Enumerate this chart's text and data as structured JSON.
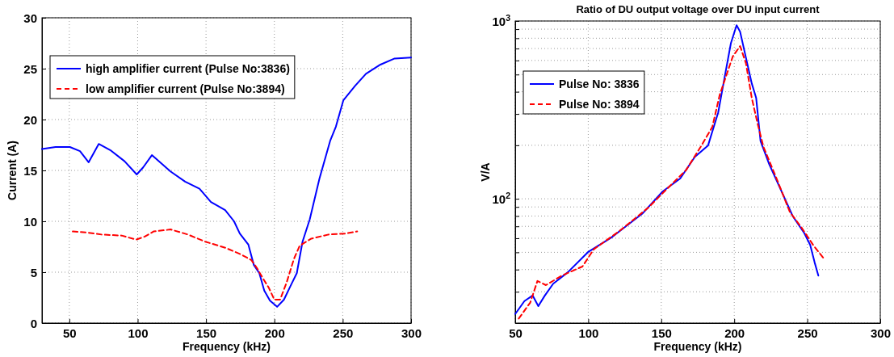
{
  "chart_data": [
    {
      "type": "line",
      "xlabel": "Frequency (kHz)",
      "ylabel": "Current (A)",
      "xlim": [
        30,
        300
      ],
      "xticks": [
        50,
        100,
        150,
        200,
        250,
        300
      ],
      "ylim": [
        0,
        30
      ],
      "yticks": [
        0,
        5,
        10,
        15,
        20,
        25,
        30
      ],
      "grid": true,
      "legend": "top left",
      "series": [
        {
          "name": "high amplifier current (Pulse No:3836)",
          "color": "#0000ff",
          "line_style": "solid",
          "x": [
            30,
            39.9,
            50.4,
            57.8,
            64.1,
            71.5,
            79.9,
            90.4,
            99.3,
            104,
            110.4,
            124,
            134.7,
            145.2,
            153.6,
            164,
            170.5,
            174.7,
            181,
            185,
            189,
            192.6,
            196.8,
            202,
            207,
            212,
            216.4,
            220.6,
            225.9,
            233,
            240.8,
            245,
            250.5,
            259,
            267,
            277.6,
            288,
            300
          ],
          "values": [
            17.1,
            17.3,
            17.3,
            16.9,
            15.8,
            17.6,
            17.0,
            15.9,
            14.6,
            15.3,
            16.5,
            14.9,
            13.9,
            13.2,
            11.9,
            11.1,
            10.0,
            8.8,
            7.7,
            5.7,
            4.9,
            3.2,
            2.2,
            1.6,
            2.3,
            3.7,
            4.9,
            8.0,
            10.2,
            14.2,
            17.9,
            19.3,
            21.9,
            23.3,
            24.5,
            25.4,
            26.0,
            26.1
          ]
        },
        {
          "name": "low amplifier current (Pulse No:3894)",
          "color": "#ff0000",
          "line_style": "dashed",
          "x": [
            52.5,
            63,
            73.6,
            88.3,
            98.9,
            105.2,
            111.6,
            124.1,
            136.8,
            149.4,
            164.2,
            174.7,
            183.1,
            187.3,
            191.6,
            195.8,
            200,
            204.2,
            209,
            214.3,
            218.5,
            227,
            239.6,
            252,
            260.6
          ],
          "values": [
            9.0,
            8.9,
            8.7,
            8.6,
            8.2,
            8.5,
            9.0,
            9.2,
            8.7,
            8.0,
            7.4,
            6.8,
            6.2,
            5.4,
            4.4,
            3.5,
            2.3,
            2.3,
            4.0,
            6.3,
            7.6,
            8.3,
            8.7,
            8.8,
            9.0
          ]
        }
      ]
    },
    {
      "type": "line",
      "title": "Ratio of DU output voltage over DU input current",
      "xlabel": "Frequency (kHz)",
      "ylabel": "V/A",
      "log": true,
      "xlim": [
        50,
        300
      ],
      "xticks": [
        50,
        100,
        150,
        200,
        250,
        300
      ],
      "ylim": [
        20,
        1000
      ],
      "yticks": [
        {
          "value": 20,
          "label": null
        },
        {
          "value": 30,
          "label": null
        },
        {
          "value": 40,
          "label": null
        },
        {
          "value": 50,
          "label": null
        },
        {
          "value": 60,
          "label": null
        },
        {
          "value": 70,
          "label": null
        },
        {
          "value": 80,
          "label": null
        },
        {
          "value": 90,
          "label": null
        },
        {
          "value": 100,
          "label": "10$^{2}$"
        },
        {
          "value": 200,
          "label": null
        },
        {
          "value": 300,
          "label": null
        },
        {
          "value": 400,
          "label": null
        },
        {
          "value": 500,
          "label": null
        },
        {
          "value": 600,
          "label": null
        },
        {
          "value": 700,
          "label": null
        },
        {
          "value": 800,
          "label": null
        },
        {
          "value": 900,
          "label": null
        },
        {
          "value": 1000,
          "label": "10$^{3}$"
        }
      ],
      "grid": true,
      "legend": "top left",
      "series": [
        {
          "name": "Pulse No: 3836",
          "color": "#0000ff",
          "line_style": "solid",
          "x": [
            50,
            56.3,
            61.9,
            65.8,
            70.2,
            76,
            86,
            99.8,
            115.6,
            137.4,
            151,
            163,
            173,
            182,
            189,
            193.7,
            197.7,
            201.6,
            204,
            208,
            212,
            215,
            218,
            224,
            232,
            240,
            248,
            252,
            255,
            257.6
          ],
          "values": [
            22.5,
            26.6,
            28.6,
            24.9,
            28.5,
            33.3,
            38.6,
            50.1,
            60.4,
            83,
            110,
            130,
            172,
            199,
            306,
            498,
            750,
            946,
            871,
            622,
            445,
            369,
            211,
            156,
            112,
            80,
            64,
            55,
            44,
            37
          ]
        },
        {
          "name": "Pulse No: 3894",
          "color": "#ff0000",
          "line_style": "dashed",
          "x": [
            52.4,
            60.3,
            65.2,
            71,
            82,
            96,
            103.8,
            121.5,
            141,
            155,
            167,
            177,
            185,
            190,
            194,
            199,
            204,
            208,
            212,
            216,
            220,
            229,
            238,
            246,
            254,
            261
          ],
          "values": [
            21.2,
            26.1,
            34.5,
            32.7,
            37,
            41.6,
            52,
            66,
            89,
            116,
            145,
            196,
            254,
            383,
            479,
            632,
            723,
            578,
            369,
            264,
            196,
            130,
            84.5,
            69,
            55,
            46.5
          ]
        }
      ]
    }
  ]
}
